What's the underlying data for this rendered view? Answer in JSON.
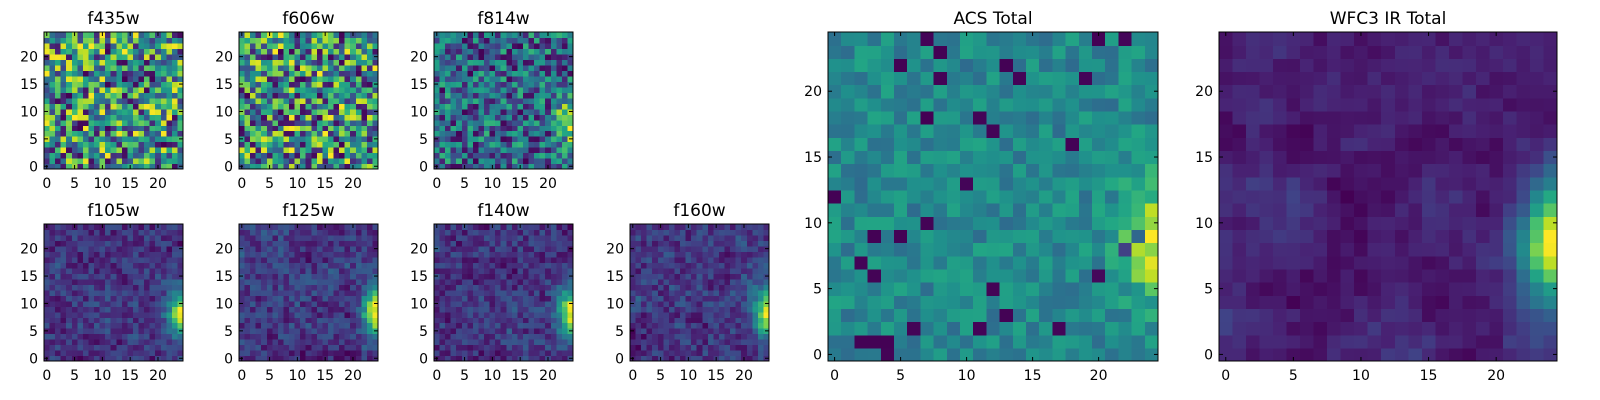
{
  "chart_data": [
    {
      "type": "heatmap",
      "title": "f435w",
      "xticks": [
        0,
        5,
        10,
        15,
        20
      ],
      "yticks": [
        0,
        5,
        10,
        15,
        20
      ],
      "xlim": [
        -0.5,
        24.5
      ],
      "ylim": [
        -0.5,
        24.5
      ],
      "grid": false,
      "colormap": "viridis",
      "pattern": "noise",
      "seed": 11
    },
    {
      "type": "heatmap",
      "title": "f606w",
      "xticks": [
        0,
        5,
        10,
        15,
        20
      ],
      "yticks": [
        0,
        5,
        10,
        15,
        20
      ],
      "xlim": [
        -0.5,
        24.5
      ],
      "ylim": [
        -0.5,
        24.5
      ],
      "grid": false,
      "colormap": "viridis",
      "pattern": "noise",
      "seed": 23
    },
    {
      "type": "heatmap",
      "title": "f814w",
      "xticks": [
        0,
        5,
        10,
        15,
        20
      ],
      "yticks": [
        0,
        5,
        10,
        15,
        20
      ],
      "xlim": [
        -0.5,
        24.5
      ],
      "ylim": [
        -0.5,
        24.5
      ],
      "grid": false,
      "colormap": "viridis",
      "pattern": "mixed",
      "seed": 37
    },
    {
      "type": "heatmap",
      "title": "f105w",
      "xticks": [
        0,
        5,
        10,
        15,
        20
      ],
      "yticks": [
        0,
        5,
        10,
        15,
        20
      ],
      "xlim": [
        -0.5,
        24.5
      ],
      "ylim": [
        -0.5,
        24.5
      ],
      "grid": false,
      "colormap": "viridis",
      "pattern": "ir",
      "seed": 41
    },
    {
      "type": "heatmap",
      "title": "f125w",
      "xticks": [
        0,
        5,
        10,
        15,
        20
      ],
      "yticks": [
        0,
        5,
        10,
        15,
        20
      ],
      "xlim": [
        -0.5,
        24.5
      ],
      "ylim": [
        -0.5,
        24.5
      ],
      "grid": false,
      "colormap": "viridis",
      "pattern": "ir",
      "seed": 53
    },
    {
      "type": "heatmap",
      "title": "f140w",
      "xticks": [
        0,
        5,
        10,
        15,
        20
      ],
      "yticks": [
        0,
        5,
        10,
        15,
        20
      ],
      "xlim": [
        -0.5,
        24.5
      ],
      "ylim": [
        -0.5,
        24.5
      ],
      "grid": false,
      "colormap": "viridis",
      "pattern": "ir",
      "seed": 67
    },
    {
      "type": "heatmap",
      "title": "f160w",
      "xticks": [
        0,
        5,
        10,
        15,
        20
      ],
      "yticks": [
        0,
        5,
        10,
        15,
        20
      ],
      "xlim": [
        -0.5,
        24.5
      ],
      "ylim": [
        -0.5,
        24.5
      ],
      "grid": false,
      "colormap": "viridis",
      "pattern": "ir",
      "seed": 79
    },
    {
      "type": "heatmap",
      "title": "ACS Total",
      "xticks": [
        0,
        5,
        10,
        15,
        20
      ],
      "yticks": [
        0,
        5,
        10,
        15,
        20
      ],
      "xlim": [
        -0.5,
        24.5
      ],
      "ylim": [
        -0.5,
        24.5
      ],
      "grid": false,
      "colormap": "viridis",
      "pattern": "acs",
      "seed": 97
    },
    {
      "type": "heatmap",
      "title": "WFC3 IR Total",
      "xticks": [
        0,
        5,
        10,
        15,
        20
      ],
      "yticks": [
        0,
        5,
        10,
        15,
        20
      ],
      "xlim": [
        -0.5,
        24.5
      ],
      "ylim": [
        -0.5,
        24.5
      ],
      "grid": false,
      "colormap": "viridis",
      "pattern": "irtotal",
      "seed": 113
    }
  ]
}
